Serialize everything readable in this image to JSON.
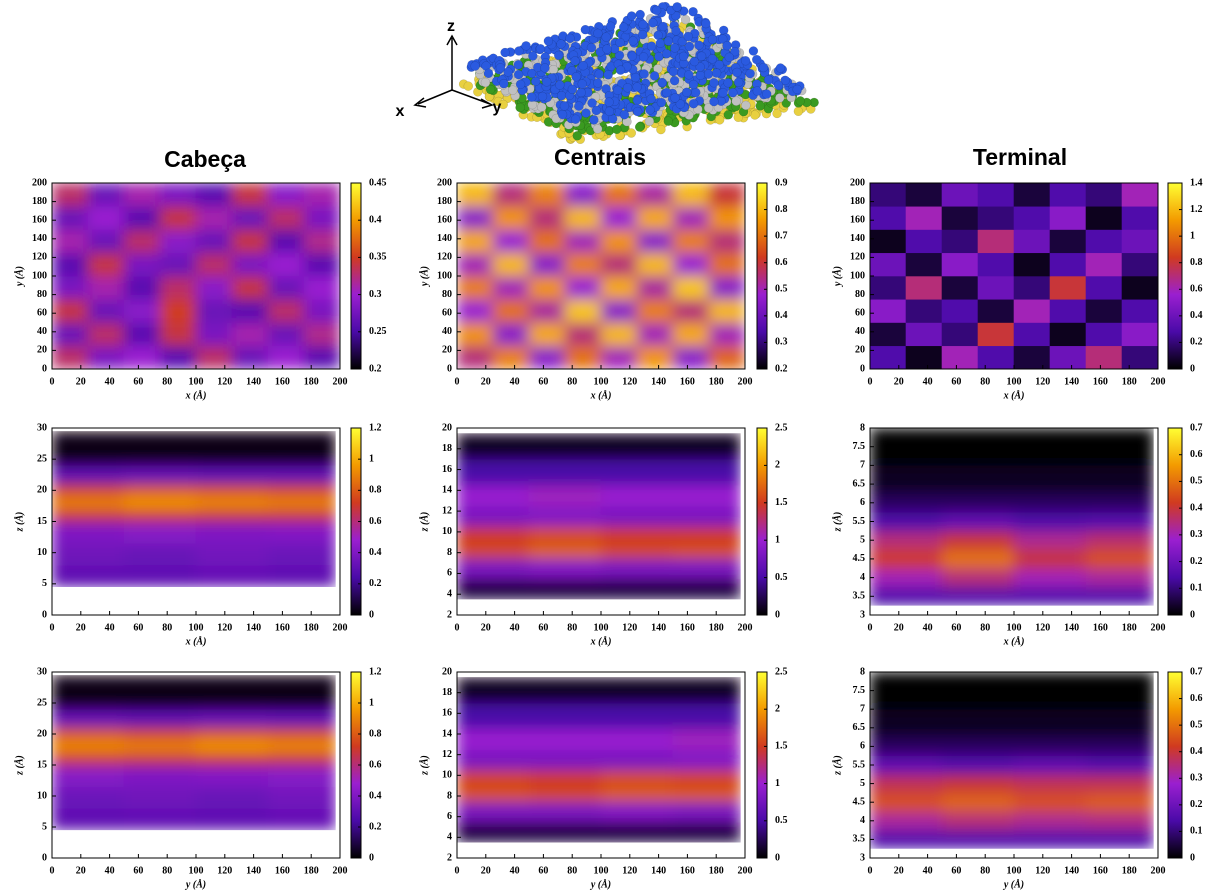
{
  "column_titles": [
    "Cabeça",
    "Centrais",
    "Terminal"
  ],
  "schematic": {
    "axis_labels": [
      "z",
      "x",
      "y"
    ]
  },
  "palette": [
    "#000000",
    "#4a0aa8",
    "#9a1fd0",
    "#d03a20",
    "#f39a00",
    "#ffff33"
  ],
  "chart_data": [
    {
      "type": "heatmap",
      "xlabel": "x (Å)",
      "ylabel": "y (Å)",
      "smooth": true,
      "xlim": [
        0,
        200
      ],
      "xticks": [
        0,
        20,
        40,
        60,
        80,
        100,
        120,
        140,
        160,
        180,
        200
      ],
      "ylim": [
        0,
        200
      ],
      "yticks": [
        0,
        20,
        40,
        60,
        80,
        100,
        120,
        140,
        160,
        180,
        200
      ],
      "zlim": [
        0.2,
        0.45
      ],
      "zticks": [
        0.2,
        0.25,
        0.3,
        0.35,
        0.4,
        0.45
      ],
      "xbins": [
        0,
        25,
        50,
        75,
        100,
        125,
        150,
        175,
        200
      ],
      "ybins": [
        0,
        25,
        50,
        75,
        100,
        125,
        150,
        175,
        200
      ],
      "values": [
        [
          0.33,
          0.28,
          0.3,
          0.26,
          0.33,
          0.27,
          0.3,
          0.26
        ],
        [
          0.27,
          0.33,
          0.26,
          0.34,
          0.28,
          0.31,
          0.27,
          0.32
        ],
        [
          0.34,
          0.27,
          0.29,
          0.35,
          0.27,
          0.26,
          0.33,
          0.28
        ],
        [
          0.28,
          0.31,
          0.26,
          0.33,
          0.29,
          0.34,
          0.27,
          0.3
        ],
        [
          0.26,
          0.34,
          0.28,
          0.27,
          0.33,
          0.28,
          0.3,
          0.26
        ],
        [
          0.31,
          0.27,
          0.33,
          0.29,
          0.27,
          0.34,
          0.26,
          0.32
        ],
        [
          0.27,
          0.3,
          0.26,
          0.34,
          0.31,
          0.27,
          0.33,
          0.28
        ],
        [
          0.33,
          0.27,
          0.31,
          0.28,
          0.26,
          0.34,
          0.29,
          0.31
        ]
      ]
    },
    {
      "type": "heatmap",
      "xlabel": "x (Å)",
      "ylabel": "y (Å)",
      "smooth": true,
      "xlim": [
        0,
        200
      ],
      "xticks": [
        0,
        20,
        40,
        60,
        80,
        100,
        120,
        140,
        160,
        180,
        200
      ],
      "ylim": [
        0,
        200
      ],
      "yticks": [
        0,
        20,
        40,
        60,
        80,
        100,
        120,
        140,
        160,
        180,
        200
      ],
      "zlim": [
        0.2,
        0.9
      ],
      "zticks": [
        0.2,
        0.3,
        0.4,
        0.5,
        0.6,
        0.7,
        0.8,
        0.9
      ],
      "xbins": [
        0,
        25,
        50,
        75,
        100,
        125,
        150,
        175,
        200
      ],
      "ybins": [
        0,
        25,
        50,
        75,
        100,
        125,
        150,
        175,
        200
      ],
      "values": [
        [
          0.55,
          0.72,
          0.45,
          0.7,
          0.5,
          0.75,
          0.45,
          0.68
        ],
        [
          0.75,
          0.45,
          0.78,
          0.55,
          0.8,
          0.5,
          0.78,
          0.5
        ],
        [
          0.48,
          0.7,
          0.52,
          0.82,
          0.45,
          0.72,
          0.55,
          0.8
        ],
        [
          0.72,
          0.5,
          0.75,
          0.48,
          0.78,
          0.52,
          0.82,
          0.45
        ],
        [
          0.5,
          0.8,
          0.45,
          0.72,
          0.55,
          0.8,
          0.48,
          0.7
        ],
        [
          0.78,
          0.48,
          0.7,
          0.5,
          0.75,
          0.45,
          0.72,
          0.55
        ],
        [
          0.45,
          0.75,
          0.55,
          0.8,
          0.48,
          0.78,
          0.5,
          0.75
        ],
        [
          0.8,
          0.55,
          0.72,
          0.45,
          0.7,
          0.52,
          0.8,
          0.6
        ]
      ]
    },
    {
      "type": "heatmap",
      "xlabel": "x (Å)",
      "ylabel": "y (Å)",
      "smooth": false,
      "xlim": [
        0,
        200
      ],
      "xticks": [
        0,
        20,
        40,
        60,
        80,
        100,
        120,
        140,
        160,
        180,
        200
      ],
      "ylim": [
        0,
        200
      ],
      "yticks": [
        0,
        20,
        40,
        60,
        80,
        100,
        120,
        140,
        160,
        180,
        200
      ],
      "zlim": [
        0,
        1.4
      ],
      "zticks": [
        0,
        0.2,
        0.4,
        0.6,
        0.8,
        1,
        1.2,
        1.4
      ],
      "xbins": [
        0,
        25,
        50,
        75,
        100,
        125,
        150,
        175,
        200
      ],
      "ybins": [
        0,
        25,
        50,
        75,
        100,
        125,
        150,
        175,
        200
      ],
      "values": [
        [
          0.3,
          0.05,
          0.6,
          0.3,
          0.1,
          0.4,
          0.7,
          0.2
        ],
        [
          0.1,
          0.4,
          0.2,
          0.8,
          0.3,
          0.05,
          0.3,
          0.5
        ],
        [
          0.5,
          0.2,
          0.3,
          0.1,
          0.6,
          0.3,
          0.1,
          0.3
        ],
        [
          0.2,
          0.7,
          0.1,
          0.4,
          0.2,
          0.8,
          0.3,
          0.05
        ],
        [
          0.4,
          0.1,
          0.5,
          0.3,
          0.05,
          0.3,
          0.6,
          0.2
        ],
        [
          0.05,
          0.3,
          0.2,
          0.7,
          0.4,
          0.1,
          0.3,
          0.4
        ],
        [
          0.3,
          0.6,
          0.1,
          0.2,
          0.3,
          0.5,
          0.05,
          0.3
        ],
        [
          0.2,
          0.1,
          0.4,
          0.3,
          0.1,
          0.3,
          0.2,
          0.6
        ]
      ]
    },
    {
      "type": "heatmap",
      "xlabel": "x (Å)",
      "ylabel": "z (Å)",
      "smooth": true,
      "xlim": [
        0,
        200
      ],
      "xticks": [
        0,
        20,
        40,
        60,
        80,
        100,
        120,
        140,
        160,
        180,
        200
      ],
      "ylim": [
        0,
        30
      ],
      "yticks": [
        0,
        5,
        10,
        15,
        20,
        25,
        30
      ],
      "zlim": [
        0,
        1.2
      ],
      "zticks": [
        0,
        0.2,
        0.4,
        0.6,
        0.8,
        1,
        1.2
      ],
      "xbins": [
        0,
        50,
        100,
        150,
        197
      ],
      "ybins": [
        4.5,
        8,
        11.5,
        15,
        17,
        19,
        21,
        24,
        29.5
      ],
      "values": [
        [
          0.3,
          0.3,
          0.32,
          0.3
        ],
        [
          0.35,
          0.33,
          0.36,
          0.34
        ],
        [
          0.4,
          0.42,
          0.4,
          0.41
        ],
        [
          0.7,
          0.72,
          0.7,
          0.7
        ],
        [
          0.9,
          0.95,
          0.92,
          0.9
        ],
        [
          0.75,
          0.8,
          0.78,
          0.76
        ],
        [
          0.3,
          0.32,
          0.3,
          0.3
        ],
        [
          0.03,
          0.03,
          0.03,
          0.03
        ]
      ]
    },
    {
      "type": "heatmap",
      "xlabel": "x (Å)",
      "ylabel": "z (Å)",
      "smooth": true,
      "xlim": [
        0,
        200
      ],
      "xticks": [
        0,
        20,
        40,
        60,
        80,
        100,
        120,
        140,
        160,
        180,
        200
      ],
      "ylim": [
        2,
        20
      ],
      "yticks": [
        2,
        4,
        6,
        8,
        10,
        12,
        14,
        16,
        18,
        20
      ],
      "zlim": [
        0,
        2.5
      ],
      "zticks": [
        0,
        0.5,
        1,
        1.5,
        2,
        2.5
      ],
      "xbins": [
        0,
        50,
        100,
        150,
        197
      ],
      "ybins": [
        3.5,
        5.5,
        7.5,
        8.5,
        10.5,
        12.5,
        14.5,
        17,
        19.5
      ],
      "values": [
        [
          0.2,
          0.2,
          0.2,
          0.2
        ],
        [
          0.8,
          0.85,
          0.8,
          0.8
        ],
        [
          1.6,
          1.75,
          1.6,
          1.65
        ],
        [
          1.5,
          1.6,
          1.5,
          1.5
        ],
        [
          0.8,
          0.85,
          0.8,
          0.8
        ],
        [
          1.0,
          1.05,
          1.0,
          1.0
        ],
        [
          0.5,
          0.5,
          0.5,
          0.5
        ],
        [
          0.1,
          0.1,
          0.1,
          0.1
        ]
      ]
    },
    {
      "type": "heatmap",
      "xlabel": "x (Å)",
      "ylabel": "z (Å)",
      "smooth": true,
      "xlim": [
        0,
        200
      ],
      "xticks": [
        0,
        20,
        40,
        60,
        80,
        100,
        120,
        140,
        160,
        180,
        200
      ],
      "ylim": [
        3,
        8
      ],
      "yticks": [
        3,
        3.5,
        4,
        4.5,
        5,
        5.5,
        6,
        6.5,
        7,
        7.5,
        8
      ],
      "zlim": [
        0,
        0.7
      ],
      "zticks": [
        0,
        0.1,
        0.2,
        0.3,
        0.4,
        0.5,
        0.6,
        0.7
      ],
      "xbins": [
        0,
        50,
        100,
        150,
        197
      ],
      "ybins": [
        3.25,
        3.75,
        4.25,
        4.75,
        5.25,
        5.75,
        6.25,
        7,
        8
      ],
      "values": [
        [
          0.15,
          0.15,
          0.15,
          0.15
        ],
        [
          0.3,
          0.35,
          0.3,
          0.32
        ],
        [
          0.42,
          0.5,
          0.4,
          0.45
        ],
        [
          0.35,
          0.4,
          0.33,
          0.36
        ],
        [
          0.15,
          0.18,
          0.15,
          0.16
        ],
        [
          0.08,
          0.08,
          0.08,
          0.08
        ],
        [
          0.03,
          0.03,
          0.03,
          0.03
        ],
        [
          0,
          0,
          0,
          0
        ]
      ]
    },
    {
      "type": "heatmap",
      "xlabel": "y (Å)",
      "ylabel": "z (Å)",
      "smooth": true,
      "xlim": [
        0,
        200
      ],
      "xticks": [
        0,
        20,
        40,
        60,
        80,
        100,
        120,
        140,
        160,
        180,
        200
      ],
      "ylim": [
        0,
        30
      ],
      "yticks": [
        0,
        5,
        10,
        15,
        20,
        25,
        30
      ],
      "zlim": [
        0,
        1.2
      ],
      "zticks": [
        0,
        0.2,
        0.4,
        0.6,
        0.8,
        1,
        1.2
      ],
      "xbins": [
        0,
        50,
        100,
        150,
        197
      ],
      "ybins": [
        4.5,
        8,
        11.5,
        15,
        17,
        19,
        21,
        24,
        29.5
      ],
      "values": [
        [
          0.3,
          0.31,
          0.3,
          0.32
        ],
        [
          0.34,
          0.35,
          0.33,
          0.36
        ],
        [
          0.42,
          0.4,
          0.41,
          0.42
        ],
        [
          0.72,
          0.7,
          0.72,
          0.7
        ],
        [
          0.92,
          0.9,
          0.95,
          0.92
        ],
        [
          0.8,
          0.76,
          0.8,
          0.78
        ],
        [
          0.32,
          0.3,
          0.32,
          0.3
        ],
        [
          0.03,
          0.03,
          0.03,
          0.03
        ]
      ]
    },
    {
      "type": "heatmap",
      "xlabel": "y (Å)",
      "ylabel": "z (Å)",
      "smooth": true,
      "xlim": [
        0,
        200
      ],
      "xticks": [
        0,
        20,
        40,
        60,
        80,
        100,
        120,
        140,
        160,
        180,
        200
      ],
      "ylim": [
        2,
        20
      ],
      "yticks": [
        2,
        4,
        6,
        8,
        10,
        12,
        14,
        16,
        18,
        20
      ],
      "zlim": [
        0,
        2.5
      ],
      "zticks": [
        0,
        0.5,
        1,
        1.5,
        2,
        2.5
      ],
      "xbins": [
        0,
        50,
        100,
        150,
        197
      ],
      "ybins": [
        3.5,
        5.5,
        7.5,
        8.5,
        10.5,
        12.5,
        14.5,
        17,
        19.5
      ],
      "values": [
        [
          0.2,
          0.2,
          0.2,
          0.2
        ],
        [
          0.8,
          0.8,
          0.85,
          0.8
        ],
        [
          1.65,
          1.6,
          1.7,
          1.7
        ],
        [
          1.55,
          1.5,
          1.6,
          1.55
        ],
        [
          0.8,
          0.8,
          0.8,
          0.85
        ],
        [
          1.0,
          1.0,
          1.0,
          1.05
        ],
        [
          0.5,
          0.5,
          0.5,
          0.5
        ],
        [
          0.1,
          0.1,
          0.1,
          0.1
        ]
      ]
    },
    {
      "type": "heatmap",
      "xlabel": "y (Å)",
      "ylabel": "z (Å)",
      "smooth": true,
      "xlim": [
        0,
        200
      ],
      "xticks": [
        0,
        20,
        40,
        60,
        80,
        100,
        120,
        140,
        160,
        180,
        200
      ],
      "ylim": [
        3,
        8
      ],
      "yticks": [
        3,
        3.5,
        4,
        4.5,
        5,
        5.5,
        6,
        6.5,
        7,
        7.5,
        8
      ],
      "zlim": [
        0,
        0.7
      ],
      "zticks": [
        0,
        0.1,
        0.2,
        0.3,
        0.4,
        0.5,
        0.6,
        0.7
      ],
      "xbins": [
        0,
        50,
        100,
        150,
        197
      ],
      "ybins": [
        3.25,
        3.75,
        4.25,
        4.75,
        5.25,
        5.75,
        6.25,
        7,
        8
      ],
      "values": [
        [
          0.15,
          0.15,
          0.15,
          0.15
        ],
        [
          0.32,
          0.35,
          0.33,
          0.34
        ],
        [
          0.45,
          0.48,
          0.45,
          0.47
        ],
        [
          0.38,
          0.4,
          0.38,
          0.38
        ],
        [
          0.18,
          0.16,
          0.18,
          0.16
        ],
        [
          0.08,
          0.08,
          0.08,
          0.08
        ],
        [
          0.03,
          0.03,
          0.03,
          0.03
        ],
        [
          0,
          0,
          0,
          0
        ]
      ]
    }
  ]
}
